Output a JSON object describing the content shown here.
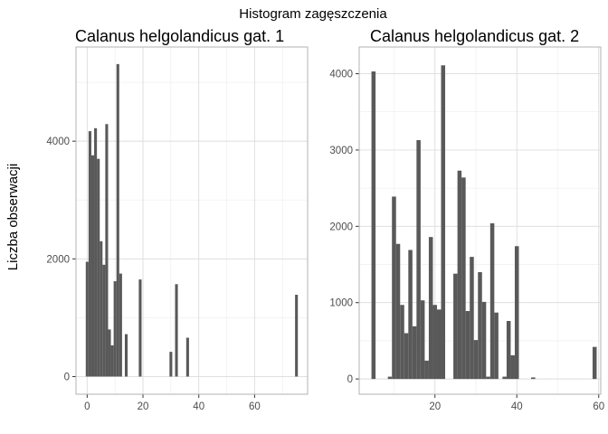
{
  "figure": {
    "title": "Histogram zagęszczenia",
    "ylabel": "Liczba obserwacji"
  },
  "colors": {
    "bar": "#595959",
    "grid_major": "#dcdcdc",
    "grid_minor": "#ececec",
    "panel_border": "#b3b3b3",
    "tick_text": "#4d4d4d"
  },
  "chart_data": [
    {
      "type": "bar",
      "title": "Calanus helgolandicus gat. 1",
      "xlabel": "",
      "ylabel": "Liczba obserwacji",
      "grid": true,
      "bin_width": 1,
      "xlim": [
        -4,
        79
      ],
      "ylim": [
        -300,
        5600
      ],
      "xticks": [
        0,
        20,
        40,
        60
      ],
      "yticks": [
        0,
        2000,
        4000
      ],
      "bins": [
        {
          "x": 0,
          "y": 1950
        },
        {
          "x": 1,
          "y": 4170
        },
        {
          "x": 2,
          "y": 3760
        },
        {
          "x": 3,
          "y": 4220
        },
        {
          "x": 4,
          "y": 3700
        },
        {
          "x": 5,
          "y": 2300
        },
        {
          "x": 6,
          "y": 1900
        },
        {
          "x": 7,
          "y": 4290
        },
        {
          "x": 8,
          "y": 800
        },
        {
          "x": 9,
          "y": 530
        },
        {
          "x": 10,
          "y": 1620
        },
        {
          "x": 11,
          "y": 5310
        },
        {
          "x": 12,
          "y": 1750
        },
        {
          "x": 14,
          "y": 720
        },
        {
          "x": 19,
          "y": 1650
        },
        {
          "x": 30,
          "y": 420
        },
        {
          "x": 32,
          "y": 1570
        },
        {
          "x": 36,
          "y": 660
        },
        {
          "x": 75,
          "y": 1390
        }
      ]
    },
    {
      "type": "bar",
      "title": "Calanus helgolandicus gat. 2",
      "xlabel": "",
      "ylabel": "Liczba obserwacji",
      "grid": true,
      "bin_width": 1,
      "xlim": [
        1.5,
        60.5
      ],
      "ylim": [
        -200,
        4350
      ],
      "xticks": [
        20,
        40,
        60
      ],
      "yticks": [
        0,
        1000,
        2000,
        3000,
        4000
      ],
      "bins": [
        {
          "x": 5,
          "y": 4030
        },
        {
          "x": 9,
          "y": 30
        },
        {
          "x": 10,
          "y": 2390
        },
        {
          "x": 11,
          "y": 1770
        },
        {
          "x": 12,
          "y": 970
        },
        {
          "x": 13,
          "y": 600
        },
        {
          "x": 14,
          "y": 1690
        },
        {
          "x": 15,
          "y": 690
        },
        {
          "x": 16,
          "y": 3130
        },
        {
          "x": 17,
          "y": 1030
        },
        {
          "x": 18,
          "y": 240
        },
        {
          "x": 19,
          "y": 1860
        },
        {
          "x": 20,
          "y": 970
        },
        {
          "x": 21,
          "y": 910
        },
        {
          "x": 22,
          "y": 4110
        },
        {
          "x": 25,
          "y": 1380
        },
        {
          "x": 26,
          "y": 2730
        },
        {
          "x": 27,
          "y": 2640
        },
        {
          "x": 28,
          "y": 890
        },
        {
          "x": 29,
          "y": 1600
        },
        {
          "x": 30,
          "y": 510
        },
        {
          "x": 31,
          "y": 1400
        },
        {
          "x": 32,
          "y": 1010
        },
        {
          "x": 33,
          "y": 30
        },
        {
          "x": 34,
          "y": 2040
        },
        {
          "x": 35,
          "y": 870
        },
        {
          "x": 37,
          "y": 30
        },
        {
          "x": 38,
          "y": 760
        },
        {
          "x": 39,
          "y": 310
        },
        {
          "x": 40,
          "y": 1740
        },
        {
          "x": 44,
          "y": 20
        },
        {
          "x": 59,
          "y": 420
        }
      ]
    }
  ]
}
